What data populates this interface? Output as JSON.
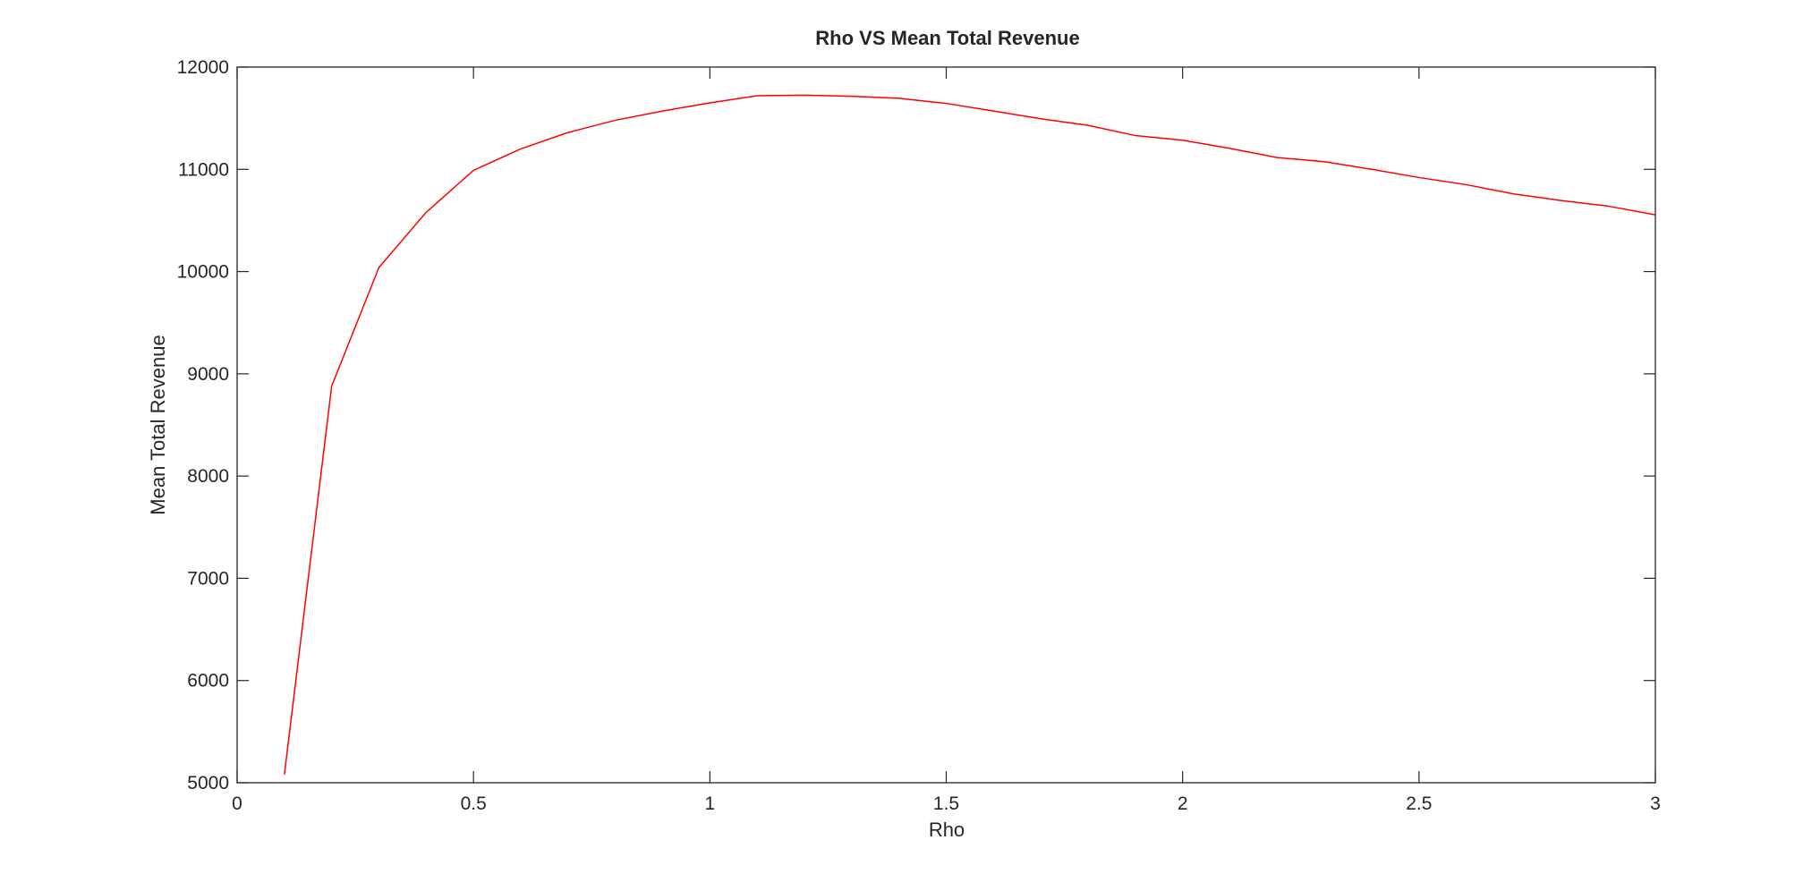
{
  "chart_data": {
    "type": "line",
    "title": "Rho VS Mean Total Revenue",
    "xlabel": "Rho",
    "ylabel": "Mean Total Revenue",
    "xlim": [
      0,
      3
    ],
    "ylim": [
      5000,
      12000
    ],
    "xticks": [
      0,
      0.5,
      1,
      1.5,
      2,
      2.5,
      3
    ],
    "xtick_labels": [
      "0",
      "0.5",
      "1",
      "1.5",
      "2",
      "2.5",
      "3"
    ],
    "yticks": [
      5000,
      6000,
      7000,
      8000,
      9000,
      10000,
      11000,
      12000
    ],
    "ytick_labels": [
      "5000",
      "6000",
      "7000",
      "8000",
      "9000",
      "10000",
      "11000",
      "12000"
    ],
    "grid": false,
    "legend": false,
    "series": [
      {
        "color": "#ff0000",
        "x": [
          0.1,
          0.2,
          0.3,
          0.4,
          0.5,
          0.6,
          0.7,
          0.8,
          0.9,
          1.0,
          1.1,
          1.2,
          1.3,
          1.4,
          1.5,
          1.6,
          1.7,
          1.8,
          1.9,
          2.0,
          2.1,
          2.2,
          2.3,
          2.4,
          2.5,
          2.6,
          2.7,
          2.8,
          2.9,
          3.0
        ],
        "y": [
          5080,
          8880,
          10040,
          10580,
          10990,
          11200,
          11360,
          11480,
          11570,
          11650,
          11720,
          11725,
          11715,
          11695,
          11645,
          11570,
          11495,
          11430,
          11330,
          11285,
          11205,
          11115,
          11075,
          11000,
          10920,
          10850,
          10760,
          10695,
          10640,
          10555
        ]
      }
    ]
  }
}
